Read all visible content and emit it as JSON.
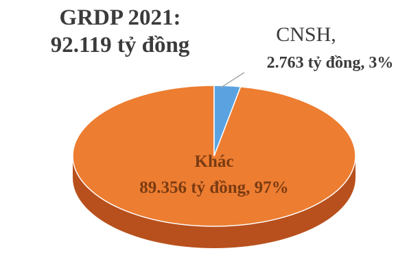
{
  "title_lines": [
    "GRDP 2021:",
    "92.119 tỷ đồng"
  ],
  "colors": {
    "main_slice": "#ED7D31",
    "main_side": "#B8501D",
    "minor_slice": "#5BA3E0",
    "minor_side": "#2E75B6",
    "main_label": "#7A3B12",
    "minor_label": "#3b3b3b"
  },
  "chart_data": {
    "type": "pie",
    "title": "GRDP 2021: 92.119 tỷ đồng",
    "slices": [
      {
        "name": "CNSH",
        "value": 2763,
        "percent": 3,
        "label_lines": [
          "CNSH,",
          "2.763 tỷ đồng, 3%"
        ]
      },
      {
        "name": "Khác",
        "value": 89356,
        "percent": 97,
        "label_lines": [
          "Khác",
          "89.356 tỷ đồng, 97%"
        ]
      }
    ],
    "legend": "none",
    "style": "3d"
  }
}
